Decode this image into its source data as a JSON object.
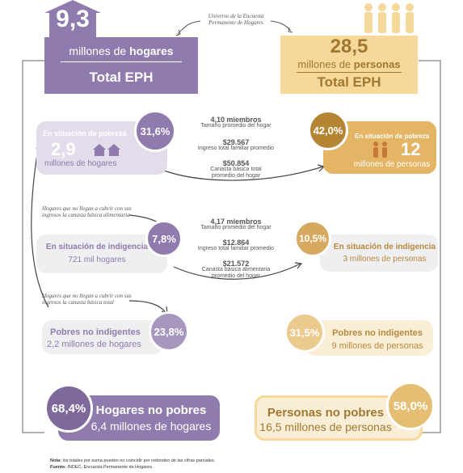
{
  "colors": {
    "purple": "#8f7bad",
    "purple_light": "#e3dcea",
    "purple_mid": "#c7bcd6",
    "gold": "#c79a4c",
    "gold_light": "#f5d89a",
    "gold_pale": "#faeed6",
    "grey_card": "#efeef1"
  },
  "universe_note": "Universo de la Encuesta Permanente de Hogares",
  "hogares": {
    "value": "9,3",
    "label_pre": "millones de ",
    "label_bold": "hogares",
    "total": "Total EPH"
  },
  "personas": {
    "value": "28,5",
    "label_pre": "millones de ",
    "label_bold": "personas",
    "total": "Total EPH"
  },
  "pobreza": {
    "hog_title": "En situación de pobreza",
    "hog_pct": "31,6%",
    "hog_value": "2,9",
    "hog_unit": "millones de hogares",
    "per_title": "En situación de pobreza",
    "per_pct": "42,0%",
    "per_value": "12",
    "per_unit": "millones de personas",
    "stats": [
      {
        "value": "4,10 miembros",
        "label": "Tamaño promedio del hogar"
      },
      {
        "value": "$29.567",
        "label": "Ingreso total familiar promedio"
      },
      {
        "value": "$50.854",
        "label": "Canasta básica total promedio del hogar"
      }
    ]
  },
  "indigencia": {
    "note": "Hogares que no llegan a cubrir con sus ingresos la canasta básica alimentaria",
    "hog_title": "En situación de indigencia",
    "hog_pct": "7,8%",
    "hog_unit": "721 mil hogares",
    "per_title": "En situación de indigencia",
    "per_pct": "10,5%",
    "per_unit": "3 millones de personas",
    "stats": [
      {
        "value": "4,17 miembros",
        "label": "Tamaño promedio del hogar"
      },
      {
        "value": "$12.864",
        "label": "Ingreso total familiar promedio"
      },
      {
        "value": "$21.572",
        "label": "Canasta básica alimentaria promedio del hogar"
      }
    ]
  },
  "no_indigentes": {
    "note": "Hogares que no llegan a cubrir con sus ingresos la canasta básica total",
    "hog_title": "Pobres no indigentes",
    "hog_pct": "23,8%",
    "hog_unit": "2,2 millones de hogares",
    "per_title": "Pobres no indigentes",
    "per_pct": "31,5%",
    "per_unit": "9 millones de personas"
  },
  "no_pobres": {
    "hog_title": "Hogares no pobres",
    "hog_pct": "68,4%",
    "hog_unit": "6,4 millones de hogares",
    "per_title": "Personas no pobres",
    "per_pct": "58,0%",
    "per_unit": "16,5 millones de personas"
  },
  "footer": {
    "nota_label": "Nota:",
    "nota_text": " los totales por suma pueden no coincidir por redondeo de las cifras parciales.",
    "fuente_label": "Fuente:",
    "fuente_text": " INDEC, Encuesta Permanente de Hogares."
  }
}
